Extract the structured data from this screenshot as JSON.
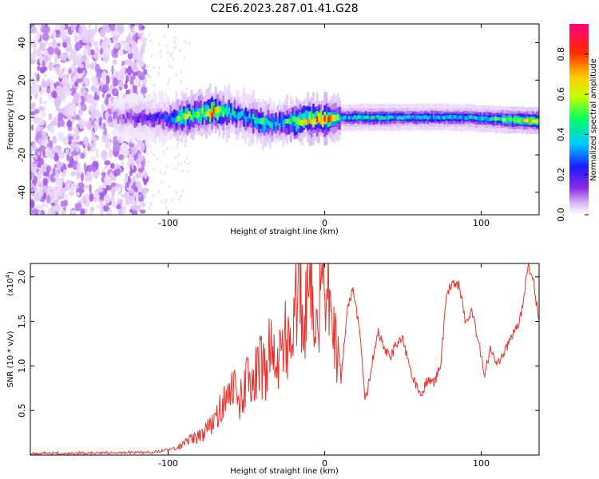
{
  "figure_title": "C2E6.2023.287.01.41.G28",
  "chart_data": [
    {
      "type": "heatmap",
      "title": "C2E6.2023.287.01.41.G28",
      "xlabel": "Height of straight line (km)",
      "ylabel": "Frequency (Hz)",
      "xlim": [
        -188,
        137
      ],
      "ylim": [
        -52,
        50
      ],
      "x_ticks": [
        -100,
        0,
        100
      ],
      "y_ticks": [
        -40,
        -20,
        0,
        20,
        40
      ],
      "colorbar": {
        "label": "Normalized spectral amplitude",
        "range": [
          0,
          0.95
        ],
        "ticks": [
          "0.0",
          "0.2",
          "0.4",
          "0.6",
          "0.8"
        ],
        "tick_values": [
          0.0,
          0.2,
          0.4,
          0.6,
          0.8
        ],
        "colors": [
          "#ffffff",
          "#d9b8f5",
          "#8a2be2",
          "#1a1aff",
          "#00c8ff",
          "#00ff66",
          "#c8ff00",
          "#ffcc00",
          "#ff2a00",
          "#ff0080"
        ]
      },
      "noise_region_x": [
        -188,
        -114
      ],
      "ridge": {
        "x": [
          -135,
          -120,
          -100,
          -90,
          -80,
          -70,
          -60,
          -50,
          -40,
          -30,
          -20,
          -10,
          0,
          10,
          30,
          50,
          70,
          90,
          110,
          137
        ],
        "freq": [
          0,
          0,
          -1,
          0,
          2,
          3,
          2,
          0,
          -3,
          -3,
          -2,
          -1,
          -1,
          0,
          0,
          0,
          0,
          0,
          -1,
          -2
        ],
        "amplitude": [
          0.15,
          0.25,
          0.35,
          0.7,
          0.6,
          0.85,
          0.5,
          0.45,
          0.6,
          0.4,
          0.7,
          0.75,
          0.9,
          0.45,
          0.5,
          0.45,
          0.45,
          0.45,
          0.55,
          0.8
        ]
      }
    },
    {
      "type": "line",
      "xlabel": "Height of straight line (km)",
      "ylabel": "SNR (10 * v/v)",
      "y_multiplier": "(x10",
      "y_multiplier_exp": "4",
      "y_multiplier_close": ")",
      "xlim": [
        -188,
        137
      ],
      "ylim": [
        0,
        2.15
      ],
      "x_ticks": [
        -100,
        0,
        100
      ],
      "y_ticks": [
        "0.5",
        "1.0",
        "1.5",
        "2.0"
      ],
      "y_tick_values": [
        0.5,
        1.0,
        1.5,
        2.0
      ],
      "color": "#e8312a",
      "series": {
        "name": "SNR",
        "x": [
          -188,
          -160,
          -130,
          -110,
          -100,
          -92,
          -85,
          -78,
          -72,
          -66,
          -62,
          -58,
          -54,
          -50,
          -46,
          -42,
          -38,
          -34,
          -30,
          -26,
          -22,
          -18,
          -16,
          -14,
          -12,
          -10,
          -8,
          -5,
          -2,
          2,
          6,
          10,
          14,
          18,
          22,
          26,
          30,
          34,
          38,
          42,
          46,
          50,
          54,
          58,
          62,
          66,
          70,
          74,
          78,
          82,
          86,
          90,
          94,
          98,
          102,
          106,
          110,
          114,
          118,
          122,
          126,
          130,
          134,
          137
        ],
        "y": [
          0.02,
          0.02,
          0.03,
          0.03,
          0.06,
          0.08,
          0.15,
          0.2,
          0.3,
          0.45,
          0.55,
          0.62,
          0.5,
          0.7,
          0.6,
          0.9,
          0.75,
          1.1,
          0.8,
          1.2,
          0.9,
          1.4,
          2.15,
          1.0,
          1.5,
          1.3,
          1.7,
          1.2,
          1.6,
          1.55,
          1.2,
          0.7,
          1.6,
          1.85,
          1.45,
          0.6,
          1.0,
          1.4,
          1.2,
          1.1,
          1.25,
          1.3,
          1.0,
          0.8,
          0.7,
          0.85,
          0.8,
          1.0,
          1.8,
          1.95,
          1.9,
          1.5,
          1.6,
          1.3,
          0.9,
          1.2,
          1.0,
          1.1,
          1.3,
          1.4,
          1.6,
          2.15,
          1.9,
          1.45
        ]
      }
    }
  ]
}
